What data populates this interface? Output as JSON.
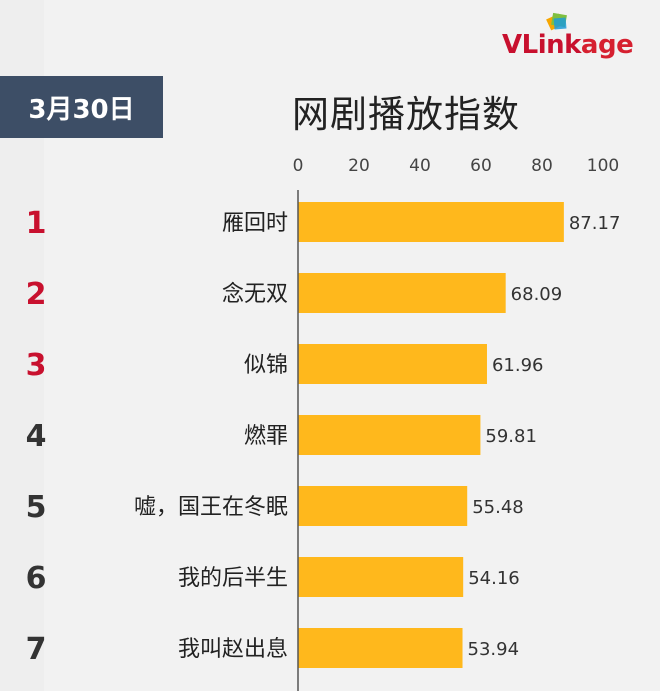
{
  "logo": {
    "text_prefix": "VLink",
    "text_suffix": "age"
  },
  "date_label": "3月30日",
  "chart_data": {
    "type": "bar",
    "orientation": "horizontal",
    "title": "网剧播放指数",
    "categories": [
      "雁回时",
      "念无双",
      "似锦",
      "燃罪",
      "嘘，国王在冬眠",
      "我的后半生",
      "我叫赵出息"
    ],
    "ranks": [
      "1",
      "2",
      "3",
      "4",
      "5",
      "6",
      "7"
    ],
    "values": [
      87.17,
      68.09,
      61.96,
      59.81,
      55.48,
      54.16,
      53.94
    ],
    "value_labels": [
      "87.17",
      "68.09",
      "61.96",
      "59.81",
      "55.48",
      "54.16",
      "53.94"
    ],
    "xlim": [
      0,
      100
    ],
    "x_ticks": [
      "0",
      "20",
      "40",
      "60",
      "80",
      "100"
    ],
    "tick_values": [
      0,
      20,
      40,
      60,
      80,
      100
    ],
    "grid": false,
    "colors": {
      "bar": "#ffb81c",
      "rank_top": "#c8102e",
      "rank_other": "#333333",
      "axis": "#555555"
    }
  }
}
